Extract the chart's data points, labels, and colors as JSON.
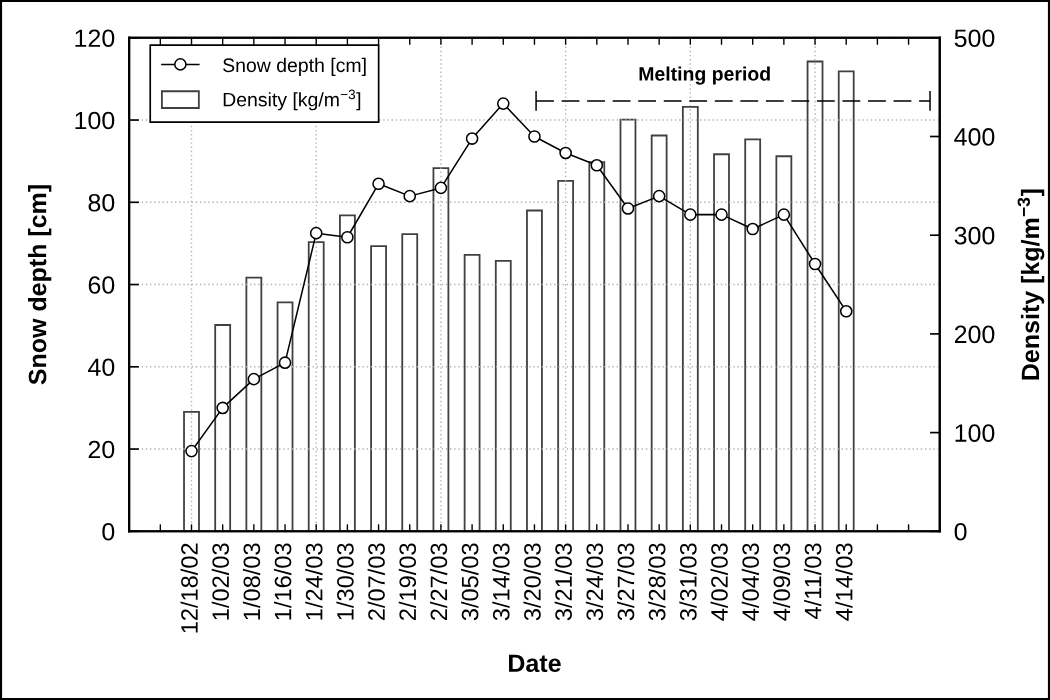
{
  "chart_data": {
    "type": "bar",
    "xlabel": "Date",
    "ylabel": "Snow depth [cm]",
    "y2label": "Density [kg/m$^{−3}$]",
    "categories": [
      "12/18/02",
      "1/02/03",
      "1/08/03",
      "1/16/03",
      "1/24/03",
      "1/30/03",
      "2/07/03",
      "2/19/03",
      "2/27/03",
      "3/05/03",
      "3/14/03",
      "3/20/03",
      "3/21/03",
      "3/24/03",
      "3/27/03",
      "3/28/03",
      "3/31/03",
      "4/02/03",
      "4/04/03",
      "4/09/03",
      "4/11/03",
      "4/14/03"
    ],
    "series": [
      {
        "name": "Snow depth [cm]",
        "type": "line",
        "color": "#000000",
        "values": [
          19.5,
          30,
          37,
          41,
          72.5,
          71.5,
          84.5,
          81.5,
          83.5,
          95.5,
          104,
          96,
          92,
          89,
          78.5,
          81.5,
          77,
          77,
          73.5,
          77,
          65,
          53.5
        ]
      },
      {
        "name": "Density [kg/m$^{−3}$]",
        "axis": "y2",
        "color": "#ffffff",
        "values": [
          121,
          209,
          257,
          232,
          293,
          320,
          289,
          301,
          368,
          280,
          274,
          325,
          355,
          374,
          417,
          401,
          430,
          382,
          397,
          380,
          476,
          466
        ]
      }
    ],
    "ylim": [
      0,
      120
    ],
    "yticks": [
      0,
      20,
      40,
      60,
      80,
      100,
      120
    ],
    "y2lim": [
      0,
      500
    ],
    "y2ticks": [
      0,
      100,
      200,
      300,
      400,
      500
    ],
    "grid": true,
    "legend": "top left",
    "marker": "circle",
    "line_style": "solid",
    "annotations": [
      "Melting period"
    ]
  }
}
